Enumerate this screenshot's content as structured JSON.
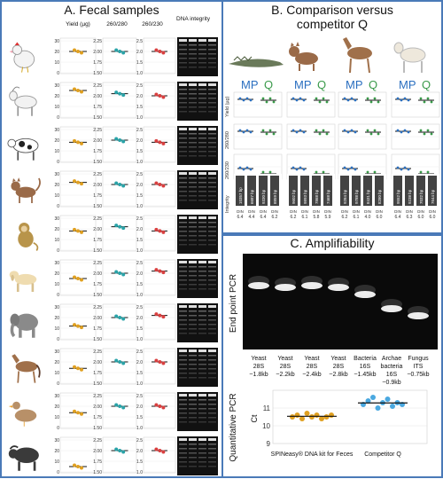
{
  "panelA": {
    "title": "A. Fecal samples",
    "headers": [
      "Yield (µg)",
      "260/280",
      "260/230",
      "DNA integrity"
    ],
    "yield_ticks": [
      "30",
      "20",
      "10",
      "0"
    ],
    "r280_ticks": [
      "2.25",
      "2.00",
      "1.75",
      "1.50"
    ],
    "r230_ticks": [
      "2.5",
      "2.0",
      "1.5",
      "1.0"
    ],
    "rows": [
      {
        "animal": "chicken",
        "yield": 20,
        "r280": 2.0,
        "r230": 2.0
      },
      {
        "animal": "goat",
        "yield": 25,
        "r280": 2.05,
        "r230": 2.0
      },
      {
        "animal": "cow",
        "yield": 18,
        "r280": 2.0,
        "r230": 1.9
      },
      {
        "animal": "cat",
        "yield": 22,
        "r280": 2.0,
        "r230": 2.0
      },
      {
        "animal": "monkey",
        "yield": 18,
        "r280": 2.05,
        "r230": 1.9
      },
      {
        "animal": "dog",
        "yield": 15,
        "r280": 2.0,
        "r230": 2.1
      },
      {
        "animal": "elephant",
        "yield": 12,
        "r280": 2.0,
        "r230": 2.1
      },
      {
        "animal": "horse",
        "yield": 14,
        "r280": 2.0,
        "r230": 2.0
      },
      {
        "animal": "duck",
        "yield": 14,
        "r280": 2.0,
        "r230": 2.0
      },
      {
        "animal": "buffalo",
        "yield": 5,
        "r280": 2.0,
        "r230": 2.0
      }
    ]
  },
  "panelB": {
    "title_line1": "B. Comparison versus",
    "title_line2": "competitor Q",
    "mp": "MP",
    "q": "Q",
    "row_labels": [
      "Yield (µg)",
      "260/280",
      "260/230",
      "Integrity"
    ],
    "bp_labels": [
      [
        "10357 bp",
        "6687 bp",
        "9330 bp",
        "8859 bp"
      ],
      [
        "9602 bp",
        "9893 bp",
        "7868 bp",
        "7468 bp"
      ],
      [
        "9284 bp",
        "9788 bp",
        "8431 bp",
        "8280 bp"
      ],
      [
        "9552 bp",
        "9238 bp",
        "7032 bp",
        "7644 bp"
      ]
    ],
    "din_values": [
      [
        "6.4",
        "4.4",
        "6.4",
        "6.2"
      ],
      [
        "6.2",
        "6.1",
        "5.8",
        "5.9"
      ],
      [
        "6.2",
        "6.1",
        "4.0",
        "6.0"
      ],
      [
        "6.4",
        "6.3",
        "6.0",
        "6.0"
      ]
    ],
    "din_label": "DIN"
  },
  "panelC": {
    "title": "C. Amplifiability",
    "endpoint_label": "End point PCR",
    "lanes": [
      {
        "l1": "Yeast",
        "l2": "28S",
        "l3": "~1.8kb"
      },
      {
        "l1": "Yeast",
        "l2": "28S",
        "l3": "~2.2kb"
      },
      {
        "l1": "Yeast",
        "l2": "28S",
        "l3": "~2.4kb"
      },
      {
        "l1": "Yeast",
        "l2": "28S",
        "l3": "~2.8kb"
      },
      {
        "l1": "Bacteria",
        "l2": "16S",
        "l3": "~1.45kb"
      },
      {
        "l1": "Archae",
        "l2": "bacteria",
        "l3": "16S",
        "l4": "~0.9kb"
      },
      {
        "l1": "Fungus",
        "l2": "ITS",
        "l3": "~0.75kb"
      }
    ],
    "qpcr_label": "Quantitative PCR",
    "ct_label": "Ct",
    "ct_ticks": [
      "11",
      "10",
      "9"
    ],
    "cat1": "SPINeasy® DNA kit for Feces",
    "cat2": "Competitor Q"
  },
  "chart_data": {
    "type": "scatter",
    "ylabel": "Ct",
    "ylim": [
      9,
      12
    ],
    "categories": [
      "SPINeasy® DNA kit for Feces",
      "Competitor Q"
    ],
    "series": [
      {
        "name": "SPINeasy® DNA kit for Feces",
        "values": [
          10.5,
          10.6,
          10.4,
          10.7,
          10.5,
          10.6,
          10.4,
          10.5,
          10.6
        ]
      },
      {
        "name": "Competitor Q",
        "values": [
          11.2,
          11.4,
          11.6,
          11.0,
          11.3,
          11.5,
          11.1,
          11.3,
          11.2
        ]
      }
    ]
  },
  "colors": {
    "border": "#4a7ab8",
    "yield": "#e0a020",
    "r280": "#2aa3a8",
    "r230": "#d94040",
    "mp": "#2a6fc0",
    "q": "#3a9a4a",
    "qpcr": "#4aa8e0"
  }
}
